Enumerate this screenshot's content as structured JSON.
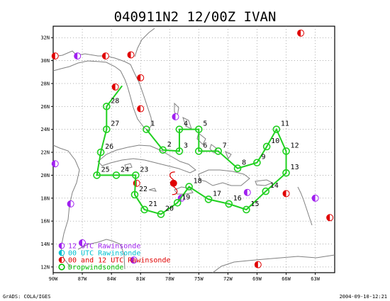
{
  "title": "040911N2 12/00Z IVAN",
  "footer_left": "GrADS: COLA/IGES",
  "footer_right": "2004-09-10-12:21",
  "lat_labels": [
    "12N",
    "14N",
    "16N",
    "18N",
    "20N",
    "22N",
    "24N",
    "26N",
    "28N",
    "30N",
    "32N"
  ],
  "lon_labels": [
    "90W",
    "87W",
    "84W",
    "81W",
    "78W",
    "75W",
    "72W",
    "69W",
    "66W",
    "63W"
  ],
  "legend": [
    {
      "label": "12 UTC Rawinsonde",
      "color": "#a020f0"
    },
    {
      "label": "00 UTC Rawinsonde",
      "color": "#00c0d0"
    },
    {
      "label": "00 and 12 UTC Rawinsonde",
      "color": "#e00000"
    },
    {
      "label": "Dropwindsonde",
      "color": "#00c000"
    }
  ],
  "colors": {
    "track": "#20d020",
    "raob_12": "#a020f0",
    "raob_both": "#e00000",
    "center": "#e00000",
    "coast": "#808080",
    "grid": "#808080"
  },
  "storm_center": {
    "lon": -77.6,
    "lat": 19.3
  },
  "raob_stations": [
    {
      "lon": -89.8,
      "lat": 30.4,
      "type": "both"
    },
    {
      "lon": -87.5,
      "lat": 30.4,
      "type": "12"
    },
    {
      "lon": -84.6,
      "lat": 30.4,
      "type": "both"
    },
    {
      "lon": -82.0,
      "lat": 30.5,
      "type": "both"
    },
    {
      "lon": -81.0,
      "lat": 28.5,
      "type": "both"
    },
    {
      "lon": -81.0,
      "lat": 25.8,
      "type": "both"
    },
    {
      "lon": -83.6,
      "lat": 27.7,
      "type": "both"
    },
    {
      "lon": -77.4,
      "lat": 25.1,
      "type": "12"
    },
    {
      "lon": -89.8,
      "lat": 21.0,
      "type": "12"
    },
    {
      "lon": -88.2,
      "lat": 17.5,
      "type": "12"
    },
    {
      "lon": -81.4,
      "lat": 19.3,
      "type": "both"
    },
    {
      "lon": -76.8,
      "lat": 18.0,
      "type": "12"
    },
    {
      "lon": -70.0,
      "lat": 18.5,
      "type": "12"
    },
    {
      "lon": -66.0,
      "lat": 18.4,
      "type": "both"
    },
    {
      "lon": -63.0,
      "lat": 18.0,
      "type": "12"
    },
    {
      "lon": -61.5,
      "lat": 16.3,
      "type": "both"
    },
    {
      "lon": -68.9,
      "lat": 12.2,
      "type": "both"
    },
    {
      "lon": -81.7,
      "lat": 12.6,
      "type": "12"
    },
    {
      "lon": -87.0,
      "lat": 14.1,
      "type": "12"
    },
    {
      "lon": -64.5,
      "lat": 32.4,
      "type": "both"
    }
  ],
  "drops": [
    {
      "id": "1",
      "lon": -80.4,
      "lat": 24.0
    },
    {
      "id": "2",
      "lon": -78.7,
      "lat": 22.2
    },
    {
      "id": "3",
      "lon": -77.0,
      "lat": 22.1
    },
    {
      "id": "4",
      "lon": -77.0,
      "lat": 24.0
    },
    {
      "id": "5",
      "lon": -75.0,
      "lat": 24.0
    },
    {
      "id": "6",
      "lon": -75.0,
      "lat": 22.1
    },
    {
      "id": "7",
      "lon": -73.0,
      "lat": 22.1
    },
    {
      "id": "8",
      "lon": -71.0,
      "lat": 20.6
    },
    {
      "id": "9",
      "lon": -69.0,
      "lat": 21.1
    },
    {
      "id": "10",
      "lon": -68.0,
      "lat": 22.5
    },
    {
      "id": "11",
      "lon": -67.0,
      "lat": 24.0
    },
    {
      "id": "12",
      "lon": -66.0,
      "lat": 22.1
    },
    {
      "id": "13",
      "lon": -66.0,
      "lat": 20.2
    },
    {
      "id": "14",
      "lon": -68.1,
      "lat": 18.6
    },
    {
      "id": "15",
      "lon": -70.1,
      "lat": 17.0
    },
    {
      "id": "16",
      "lon": -71.9,
      "lat": 17.5
    },
    {
      "id": "17",
      "lon": -74.0,
      "lat": 17.9
    },
    {
      "id": "18",
      "lon": -76.0,
      "lat": 19.0
    },
    {
      "id": "19",
      "lon": -77.2,
      "lat": 17.6
    },
    {
      "id": "20",
      "lon": -78.9,
      "lat": 16.6
    },
    {
      "id": "21",
      "lon": -80.6,
      "lat": 17.0
    },
    {
      "id": "22",
      "lon": -81.6,
      "lat": 18.3
    },
    {
      "id": "23",
      "lon": -81.5,
      "lat": 20.0
    },
    {
      "id": "24",
      "lon": -83.5,
      "lat": 20.0
    },
    {
      "id": "25",
      "lon": -85.5,
      "lat": 20.0
    },
    {
      "id": "26",
      "lon": -85.1,
      "lat": 22.0
    },
    {
      "id": "27",
      "lon": -84.5,
      "lat": 24.0
    },
    {
      "id": "28",
      "lon": -84.5,
      "lat": 26.0
    }
  ],
  "track_start": {
    "lon": -82.9,
    "lat": 27.8
  }
}
